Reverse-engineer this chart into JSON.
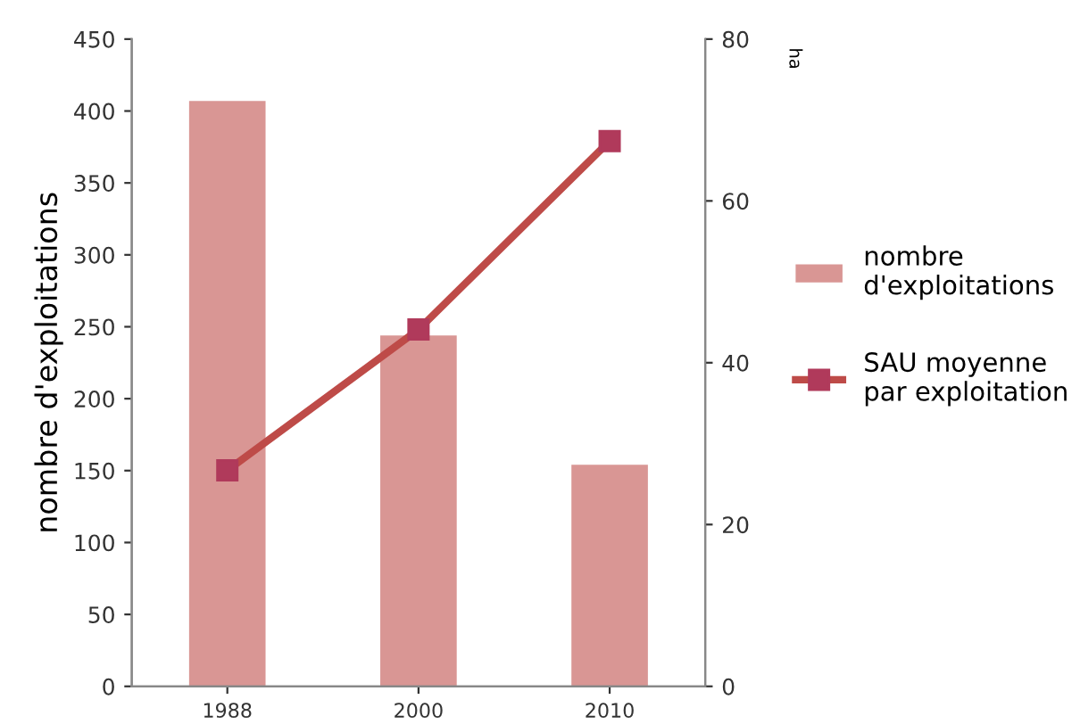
{
  "chart_data": {
    "type": "bar",
    "categories": [
      "1988",
      "2000",
      "2010"
    ],
    "ylabel": "nombre d'exploitations",
    "y2label": "ha",
    "ylim": [
      0,
      450
    ],
    "yticks": [
      0,
      50,
      100,
      150,
      200,
      250,
      300,
      350,
      400,
      450
    ],
    "y2lim": [
      0,
      80
    ],
    "y2ticks": [
      0,
      20,
      40,
      60,
      80
    ],
    "legend": "right",
    "grid": false,
    "series": [
      {
        "name": "nombre d'exploitations",
        "color": "#d99694",
        "values": [
          407,
          244,
          154
        ]
      },
      {
        "name": "SAU moyenne par exploitation",
        "type": "line",
        "axis": "y2",
        "color": "#be4b48",
        "marker": "square",
        "values": [
          26.7,
          44.1,
          67.4
        ]
      }
    ]
  }
}
